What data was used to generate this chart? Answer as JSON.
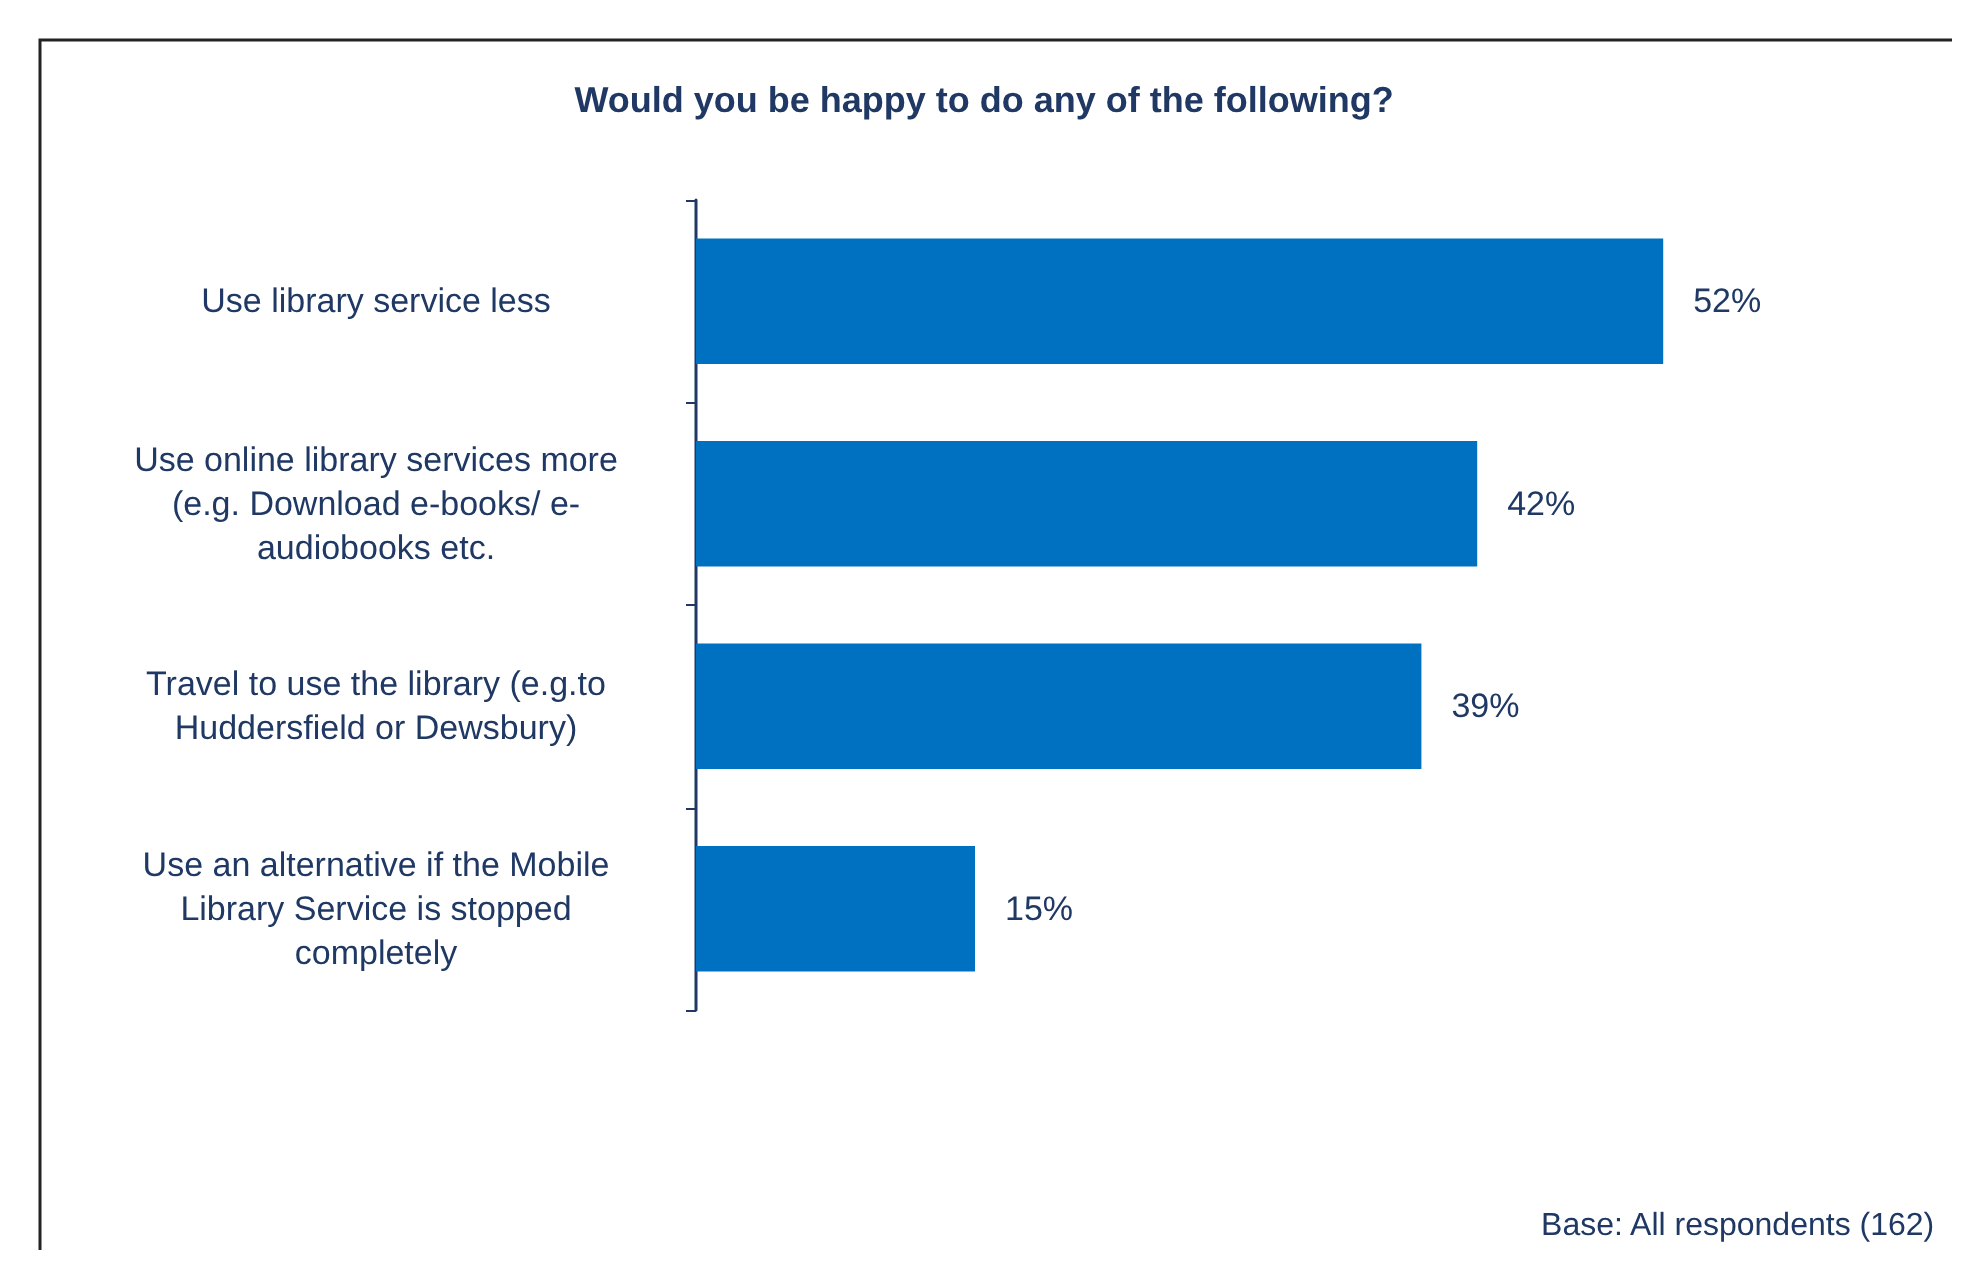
{
  "chart_data": {
    "type": "bar",
    "orientation": "horizontal",
    "title": "Would you be happy to do any of the following?",
    "categories": [
      "Use library service less",
      "Use online library services more\n(e.g. Download e-books/ e-\naudiobooks etc.",
      "Travel to use the library (e.g.to\nHuddersfield or Dewsbury)",
      "Use an alternative if the Mobile\nLibrary Service is stopped\ncompletely"
    ],
    "values": [
      52,
      42,
      39,
      15
    ],
    "value_labels": [
      "52%",
      "42%",
      "39%",
      "15%"
    ],
    "color": "#0070c0",
    "grid": false,
    "annotations": [
      "Base: All respondents (162)"
    ]
  }
}
